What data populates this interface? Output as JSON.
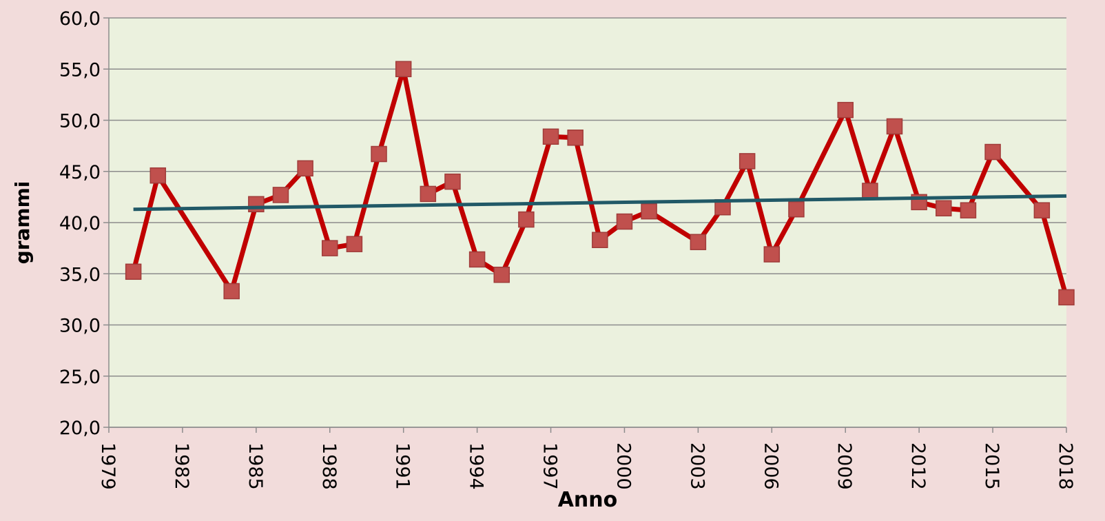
{
  "chart_data": {
    "type": "line",
    "xlabel": "Anno",
    "ylabel": "grammi",
    "x": [
      1980,
      1981,
      1984,
      1985,
      1986,
      1987,
      1988,
      1989,
      1990,
      1991,
      1992,
      1993,
      1994,
      1995,
      1996,
      1997,
      1998,
      1999,
      2000,
      2001,
      2003,
      2004,
      2005,
      2006,
      2007,
      2009,
      2010,
      2011,
      2012,
      2013,
      2014,
      2015,
      2017,
      2018
    ],
    "series": [
      {
        "color": "#c00000",
        "marker_color": "#c0504d",
        "values": [
          35.2,
          44.6,
          33.3,
          41.8,
          42.7,
          45.3,
          37.5,
          37.9,
          46.7,
          55.0,
          42.8,
          44.0,
          36.4,
          34.9,
          40.3,
          48.4,
          48.3,
          38.3,
          40.1,
          41.1,
          38.1,
          41.5,
          46.0,
          36.9,
          41.3,
          51.0,
          43.1,
          49.4,
          42.0,
          41.4,
          41.2,
          46.9,
          41.2,
          32.7
        ]
      }
    ],
    "trendline": {
      "color": "#215967",
      "x": [
        1980,
        2018
      ],
      "values": [
        41.3,
        42.6
      ]
    },
    "xlim": [
      1979,
      2018
    ],
    "xticks": [
      1979,
      1982,
      1985,
      1988,
      1991,
      1994,
      1997,
      2000,
      2003,
      2006,
      2009,
      2012,
      2015,
      2018
    ],
    "ylim": [
      20,
      60
    ],
    "yticks": [
      {
        "value": 20,
        "label": "20,0"
      },
      {
        "value": 25,
        "label": "25,0"
      },
      {
        "value": 30,
        "label": "30,0"
      },
      {
        "value": 35,
        "label": "35,0"
      },
      {
        "value": 40,
        "label": "40,0"
      },
      {
        "value": 45,
        "label": "45,0"
      },
      {
        "value": 50,
        "label": "50,0"
      },
      {
        "value": 55,
        "label": "55,0"
      },
      {
        "value": 60,
        "label": "60,0"
      }
    ],
    "grid": true
  }
}
